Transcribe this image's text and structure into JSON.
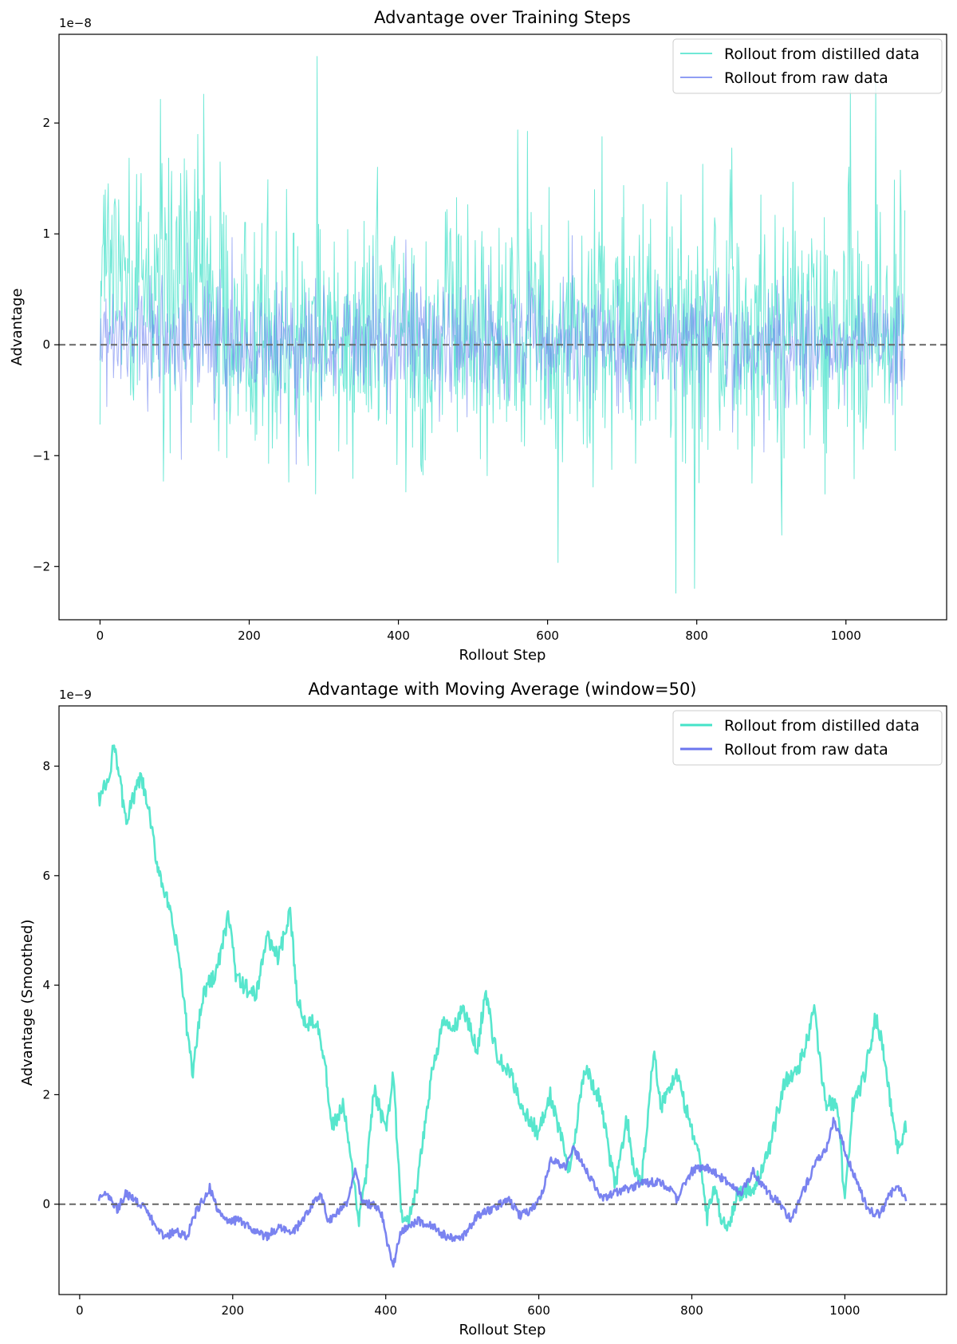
{
  "chart_data": [
    {
      "type": "line",
      "title": "Advantage over Training Steps",
      "xlabel": "Rollout Step",
      "ylabel": "Advantage",
      "offset_label": "1e−8",
      "xlim": [
        -55,
        1135
      ],
      "ylim": [
        -2.48,
        2.8
      ],
      "xticks": [
        0,
        200,
        400,
        600,
        800,
        1000
      ],
      "xtick_labels": [
        "0",
        "200",
        "400",
        "600",
        "800",
        "1000"
      ],
      "yticks": [
        -2,
        -1,
        0,
        1,
        2
      ],
      "ytick_labels": [
        "−2",
        "−1",
        "0",
        "1",
        "2"
      ],
      "zero_line": 0,
      "grid": false,
      "legend_position": "top-right",
      "n_points": 1080,
      "series": [
        {
          "name": "Rollout from distilled data",
          "color": "#40e0c8",
          "opacity": 0.75,
          "summary": {
            "min": -2.24,
            "max": 2.6,
            "typical_range": [
              -1.5,
              2.2
            ],
            "trend": "noisy oscillation around ~0.2, larger early"
          }
        },
        {
          "name": "Rollout from raw data",
          "color": "#6b7ff0",
          "opacity": 0.6,
          "summary": {
            "min": -1.12,
            "max": 1.3,
            "typical_range": [
              -0.75,
              0.75
            ],
            "trend": "noisy oscillation around 0"
          }
        }
      ]
    },
    {
      "type": "line",
      "title": "Advantage with Moving Average (window=50)",
      "xlabel": "Rollout Step",
      "ylabel": "Advantage (Smoothed)",
      "offset_label": "1e−9",
      "xlim": [
        -27,
        1133
      ],
      "ylim": [
        -1.65,
        9.1
      ],
      "xticks": [
        0,
        200,
        400,
        600,
        800,
        1000
      ],
      "xtick_labels": [
        "0",
        "200",
        "400",
        "600",
        "800",
        "1000"
      ],
      "yticks": [
        0,
        2,
        4,
        6,
        8
      ],
      "ytick_labels": [
        "0",
        "2",
        "4",
        "6",
        "8"
      ],
      "zero_line": 0,
      "grid": false,
      "legend_position": "top-right",
      "series": [
        {
          "name": "Rollout from distilled data",
          "color": "#45e3c8",
          "x": [
            25,
            40,
            45,
            60,
            80,
            90,
            100,
            115,
            130,
            140,
            148,
            160,
            180,
            195,
            205,
            230,
            245,
            260,
            275,
            285,
            295,
            310,
            320,
            330,
            345,
            355,
            365,
            375,
            385,
            400,
            410,
            420,
            430,
            440,
            460,
            475,
            490,
            500,
            520,
            530,
            545,
            565,
            580,
            600,
            615,
            640,
            660,
            680,
            700,
            715,
            725,
            735,
            750,
            760,
            780,
            795,
            810,
            820,
            830,
            840,
            850,
            860,
            880,
            900,
            920,
            940,
            960,
            975,
            990,
            1000,
            1010,
            1025,
            1040,
            1050,
            1060,
            1070,
            1080
          ],
          "values": [
            7.4,
            7.8,
            8.5,
            7.0,
            7.8,
            7.2,
            6.3,
            5.5,
            4.5,
            3.2,
            2.4,
            3.8,
            4.3,
            5.3,
            4.1,
            3.8,
            4.9,
            4.5,
            5.3,
            3.7,
            3.3,
            3.4,
            2.6,
            1.4,
            1.8,
            0.7,
            -0.3,
            0.6,
            2.1,
            1.3,
            2.4,
            -0.2,
            -0.3,
            0.2,
            2.4,
            3.3,
            3.2,
            3.6,
            2.8,
            3.9,
            2.7,
            2.3,
            1.7,
            1.3,
            2.0,
            0.6,
            2.5,
            1.9,
            0.3,
            1.6,
            0.5,
            0.5,
            2.8,
            1.8,
            2.4,
            1.6,
            0.9,
            -0.3,
            0.4,
            -0.4,
            -0.3,
            0.2,
            0.3,
            0.9,
            2.2,
            2.5,
            3.5,
            1.8,
            1.9,
            0.0,
            1.8,
            2.3,
            3.4,
            2.9,
            1.8,
            1.0,
            1.4
          ]
        },
        {
          "name": "Rollout from raw data",
          "color": "#6b75ee",
          "x": [
            25,
            35,
            50,
            60,
            80,
            95,
            110,
            125,
            140,
            150,
            170,
            180,
            195,
            210,
            230,
            245,
            260,
            280,
            300,
            315,
            325,
            340,
            350,
            360,
            370,
            385,
            395,
            405,
            410,
            420,
            430,
            440,
            460,
            480,
            500,
            520,
            540,
            560,
            575,
            590,
            605,
            615,
            635,
            645,
            655,
            670,
            680,
            700,
            720,
            740,
            755,
            770,
            780,
            800,
            815,
            830,
            845,
            865,
            880,
            900,
            915,
            930,
            945,
            960,
            975,
            985,
            995,
            1010,
            1030,
            1045,
            1060,
            1070,
            1080
          ],
          "values": [
            0.1,
            0.2,
            -0.1,
            0.2,
            0.0,
            -0.3,
            -0.6,
            -0.5,
            -0.6,
            -0.2,
            0.3,
            -0.1,
            -0.3,
            -0.3,
            -0.5,
            -0.6,
            -0.4,
            -0.5,
            -0.1,
            0.2,
            -0.3,
            -0.1,
            0.0,
            0.6,
            0.0,
            0.0,
            -0.2,
            -0.9,
            -1.1,
            -0.5,
            -0.4,
            -0.3,
            -0.4,
            -0.6,
            -0.6,
            -0.2,
            -0.1,
            0.1,
            -0.2,
            -0.1,
            0.2,
            0.8,
            0.7,
            1.0,
            0.8,
            0.4,
            0.1,
            0.2,
            0.3,
            0.4,
            0.4,
            0.3,
            0.1,
            0.6,
            0.7,
            0.6,
            0.4,
            0.2,
            0.6,
            0.2,
            0.0,
            -0.3,
            0.2,
            0.7,
            1.0,
            1.5,
            1.2,
            0.6,
            -0.1,
            -0.2,
            0.2,
            0.3,
            0.1
          ]
        }
      ]
    }
  ]
}
